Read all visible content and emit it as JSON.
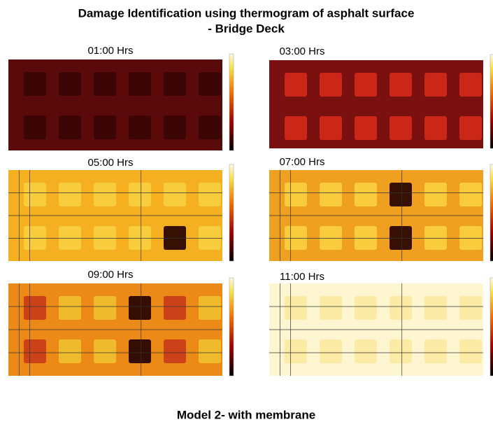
{
  "header": {
    "title": "Damage Identification using thermogram of asphalt surface",
    "subtitle": "- Bridge Deck"
  },
  "panels": [
    {
      "label": "01:00 Hrs"
    },
    {
      "label": "03:00 Hrs"
    },
    {
      "label": "05:00 Hrs"
    },
    {
      "label": "07:00 Hrs"
    },
    {
      "label": "09:00 Hrs"
    },
    {
      "label": "11:00 Hrs"
    }
  ],
  "footer": "Model 2- with membrane"
}
